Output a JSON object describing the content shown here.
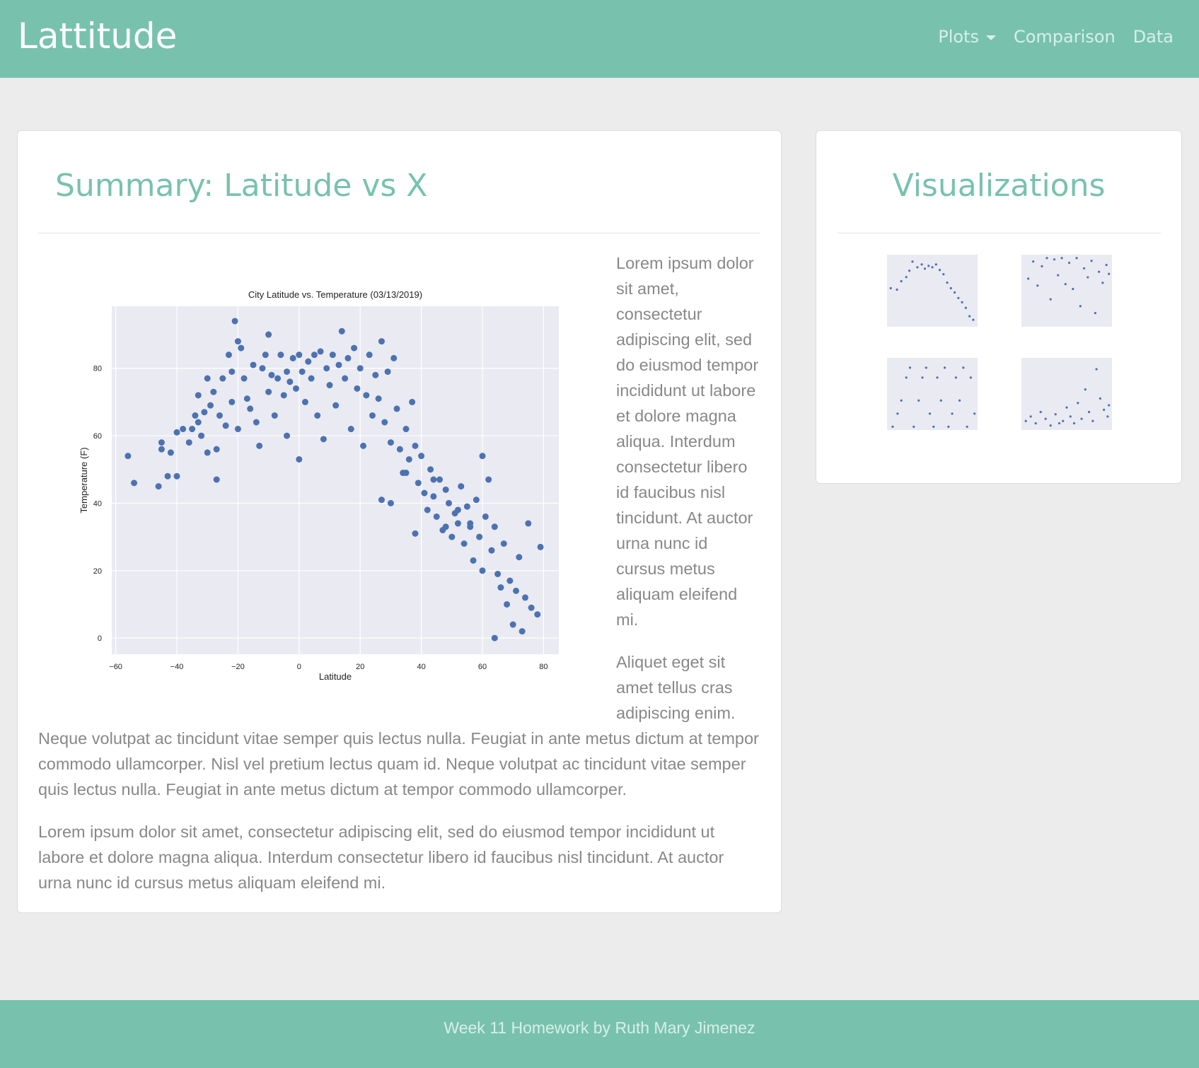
{
  "header": {
    "brand": "Lattitude",
    "nav": [
      "Plots",
      "Comparison",
      "Data"
    ]
  },
  "summary": {
    "title": "Summary: Latitude vs X",
    "paragraphs": [
      "Lorem ipsum dolor sit amet, consectetur adipiscing elit, sed do eiusmod tempor incididunt ut labore et dolore magna aliqua. Interdum consectetur libero id faucibus nisl tincidunt. At auctor urna nunc id cursus metus aliquam eleifend mi.",
      "Aliquet eget sit amet tellus cras adipiscing enim. Neque volutpat ac tincidunt vitae semper quis lectus nulla. Feugiat in ante metus dictum at tempor commodo ullamcorper. Nisl vel pretium lectus quam id. Neque volutpat ac tincidunt vitae semper quis lectus nulla. Feugiat in ante metus dictum at tempor commodo ullamcorper.",
      "Lorem ipsum dolor sit amet, consectetur adipiscing elit, sed do eiusmod tempor incididunt ut labore et dolore magna aliqua. Interdum consectetur libero id faucibus nisl tincidunt. At auctor urna nunc id cursus metus aliquam eleifend mi."
    ]
  },
  "chart_data": {
    "type": "scatter",
    "title": "City Latitude vs. Temperature (03/13/2019)",
    "x_label": "Latitude",
    "y_label": "Temperature (F)",
    "color": "#4c72b0",
    "grid": true,
    "xlim": [
      -61.3,
      85
    ],
    "ylim": [
      -4.8,
      98.4
    ],
    "xticks": [
      {
        "value": -60,
        "label": "−60"
      },
      {
        "value": -40,
        "label": "−40"
      },
      {
        "value": -20,
        "label": "−20"
      },
      0,
      20,
      40,
      60,
      80
    ],
    "yticks": [
      0,
      20,
      40,
      60,
      80
    ],
    "x": [
      -56,
      -54,
      -46,
      -45,
      -45,
      -43,
      -42,
      -40,
      -40,
      -38,
      -36,
      -35,
      -34,
      -33,
      -33,
      -32,
      -31,
      -30,
      -30,
      -29,
      -28,
      -27,
      -27,
      -26,
      -25,
      -24,
      -23,
      -22,
      -22,
      -21,
      -20,
      -20,
      -19,
      -18,
      -17,
      -16,
      -15,
      -14,
      -13,
      -12,
      -11,
      -10,
      -10,
      -9,
      -8,
      -7,
      -6,
      -5,
      -4,
      -4,
      -3,
      -2,
      -1,
      0,
      0,
      1,
      2,
      3,
      4,
      5,
      6,
      7,
      8,
      9,
      10,
      11,
      12,
      13,
      14,
      15,
      16,
      17,
      18,
      19,
      20,
      21,
      22,
      23,
      24,
      25,
      26,
      27,
      28,
      29,
      30,
      31,
      32,
      33,
      34,
      35,
      36,
      37,
      38,
      39,
      40,
      41,
      42,
      43,
      44,
      45,
      46,
      47,
      48,
      49,
      50,
      51,
      52,
      53,
      54,
      55,
      56,
      57,
      58,
      59,
      60,
      60,
      61,
      62,
      63,
      64,
      64,
      65,
      66,
      67,
      68,
      69,
      70,
      71,
      72,
      73,
      74,
      75,
      76,
      78,
      79,
      27,
      30,
      38,
      35,
      44,
      48,
      52,
      56
    ],
    "values": [
      54,
      46,
      45,
      56,
      58,
      48,
      55,
      61,
      48,
      62,
      58,
      62,
      66,
      64,
      72,
      60,
      67,
      77,
      55,
      69,
      73,
      56,
      47,
      66,
      77,
      63,
      84,
      79,
      70,
      94,
      88,
      62,
      86,
      77,
      71,
      68,
      81,
      64,
      57,
      80,
      84,
      90,
      73,
      78,
      66,
      77,
      84,
      72,
      79,
      60,
      76,
      83,
      74,
      84,
      53,
      79,
      70,
      82,
      77,
      84,
      66,
      85,
      59,
      80,
      75,
      84,
      69,
      81,
      91,
      77,
      83,
      62,
      86,
      74,
      80,
      57,
      72,
      84,
      66,
      78,
      71,
      88,
      64,
      79,
      58,
      83,
      68,
      56,
      49,
      62,
      53,
      70,
      57,
      46,
      54,
      43,
      38,
      50,
      42,
      36,
      47,
      32,
      44,
      40,
      30,
      37,
      34,
      45,
      28,
      39,
      33,
      23,
      41,
      30,
      20,
      54,
      36,
      47,
      26,
      0,
      33,
      19,
      15,
      28,
      10,
      17,
      4,
      14,
      24,
      2,
      12,
      34,
      9,
      7,
      27,
      41,
      40,
      31,
      49,
      47,
      33,
      38,
      34
    ]
  },
  "visualizations": {
    "title": "Visualizations",
    "thumbnails": [
      {
        "type": "scatter",
        "color": "#4c72b0",
        "xlim": [
          -61,
          85
        ],
        "ylim": [
          -5,
          98
        ],
        "x": [
          -55,
          -45,
          -38,
          -30,
          -25,
          -20,
          -12,
          -5,
          0,
          6,
          12,
          18,
          24,
          30,
          36,
          42,
          48,
          54,
          60,
          66,
          72,
          78
        ],
        "values": [
          50,
          48,
          60,
          66,
          75,
          88,
          80,
          84,
          78,
          82,
          80,
          84,
          76,
          70,
          58,
          50,
          44,
          36,
          30,
          22,
          10,
          5
        ]
      },
      {
        "type": "scatter",
        "color": "#4c72b0",
        "xlim": [
          -61,
          85
        ],
        "ylim": [
          0,
          105
        ],
        "x": [
          -50,
          -42,
          -35,
          -28,
          -20,
          -14,
          -8,
          -2,
          4,
          10,
          16,
          22,
          28,
          34,
          40,
          46,
          52,
          58,
          64,
          70,
          76,
          80
        ],
        "values": [
          70,
          95,
          60,
          88,
          100,
          40,
          98,
          75,
          100,
          62,
          93,
          55,
          100,
          30,
          85,
          72,
          96,
          20,
          80,
          64,
          90,
          77
        ]
      },
      {
        "type": "scatter",
        "color": "#4c72b0",
        "xlim": [
          -61,
          85
        ],
        "ylim": [
          -5,
          105
        ],
        "x": [
          -52,
          -44,
          -38,
          -30,
          -24,
          -18,
          -10,
          -4,
          2,
          8,
          14,
          20,
          26,
          32,
          38,
          44,
          50,
          56,
          62,
          68,
          74,
          80
        ],
        "values": [
          0,
          20,
          40,
          75,
          90,
          0,
          40,
          75,
          90,
          20,
          0,
          75,
          40,
          90,
          0,
          20,
          75,
          40,
          90,
          0,
          75,
          20
        ]
      },
      {
        "type": "scatter",
        "color": "#4c72b0",
        "xlim": [
          -61,
          85
        ],
        "ylim": [
          0,
          32
        ],
        "x": [
          -54,
          -46,
          -38,
          -30,
          -22,
          -14,
          -6,
          0,
          6,
          12,
          18,
          24,
          30,
          36,
          42,
          48,
          54,
          60,
          66,
          72,
          78,
          80
        ],
        "values": [
          4,
          6,
          3,
          8,
          5,
          2,
          7,
          3,
          4,
          10,
          6,
          3,
          12,
          5,
          18,
          8,
          4,
          27,
          14,
          9,
          6,
          11
        ]
      }
    ]
  },
  "footer": {
    "text": "Week 11 Homework by Ruth Mary Jimenez"
  }
}
